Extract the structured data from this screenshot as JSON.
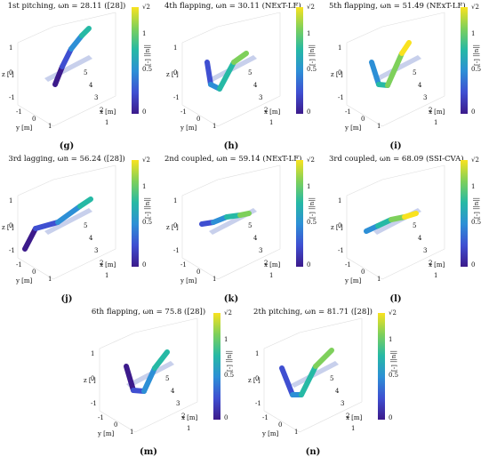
{
  "panels": [
    {
      "id": "g",
      "title": "1st pitching, ωn = 28.11 ([28])",
      "label": "(g)"
    },
    {
      "id": "h",
      "title": "4th flapping, ωn = 30.11 (NExT-LF)",
      "label": "(h)"
    },
    {
      "id": "i",
      "title": "5th flapping, ωn = 51.49 (NExT-LF)",
      "label": "(i)"
    },
    {
      "id": "j",
      "title": "3rd lagging, ωn = 56.24 ([28])",
      "label": "(j)"
    },
    {
      "id": "k",
      "title": "2nd coupled, ωn = 59.14 (NExT-LF)",
      "label": "(k)"
    },
    {
      "id": "l",
      "title": "3rd coupled, ωn = 68.09 (SSI-CVA)",
      "label": "(l)"
    },
    {
      "id": "m",
      "title": "6th flapping, ωn = 75.8 ([28])",
      "label": "(m)"
    },
    {
      "id": "n",
      "title": "2th pitching, ωn = 81.71 ([28])",
      "label": "(n)"
    }
  ],
  "axes": {
    "z_label": "z [-]",
    "y_label": "y [m]",
    "x_label": "x [m]",
    "z_ticks": [
      "1",
      "0",
      "-1"
    ],
    "y_ticks": [
      "-1",
      "0",
      "1"
    ],
    "x_ticks": [
      "1",
      "2",
      "3",
      "4",
      "5"
    ]
  },
  "colorbar": {
    "label": "||u|| [-]",
    "ticks": [
      "√2",
      "1",
      "0.5",
      "0"
    ]
  },
  "colors": {
    "low": "#3c1a8b",
    "mid": "#26b9a5",
    "high": "#f9e21f",
    "ghost": "#c8d0ec"
  }
}
